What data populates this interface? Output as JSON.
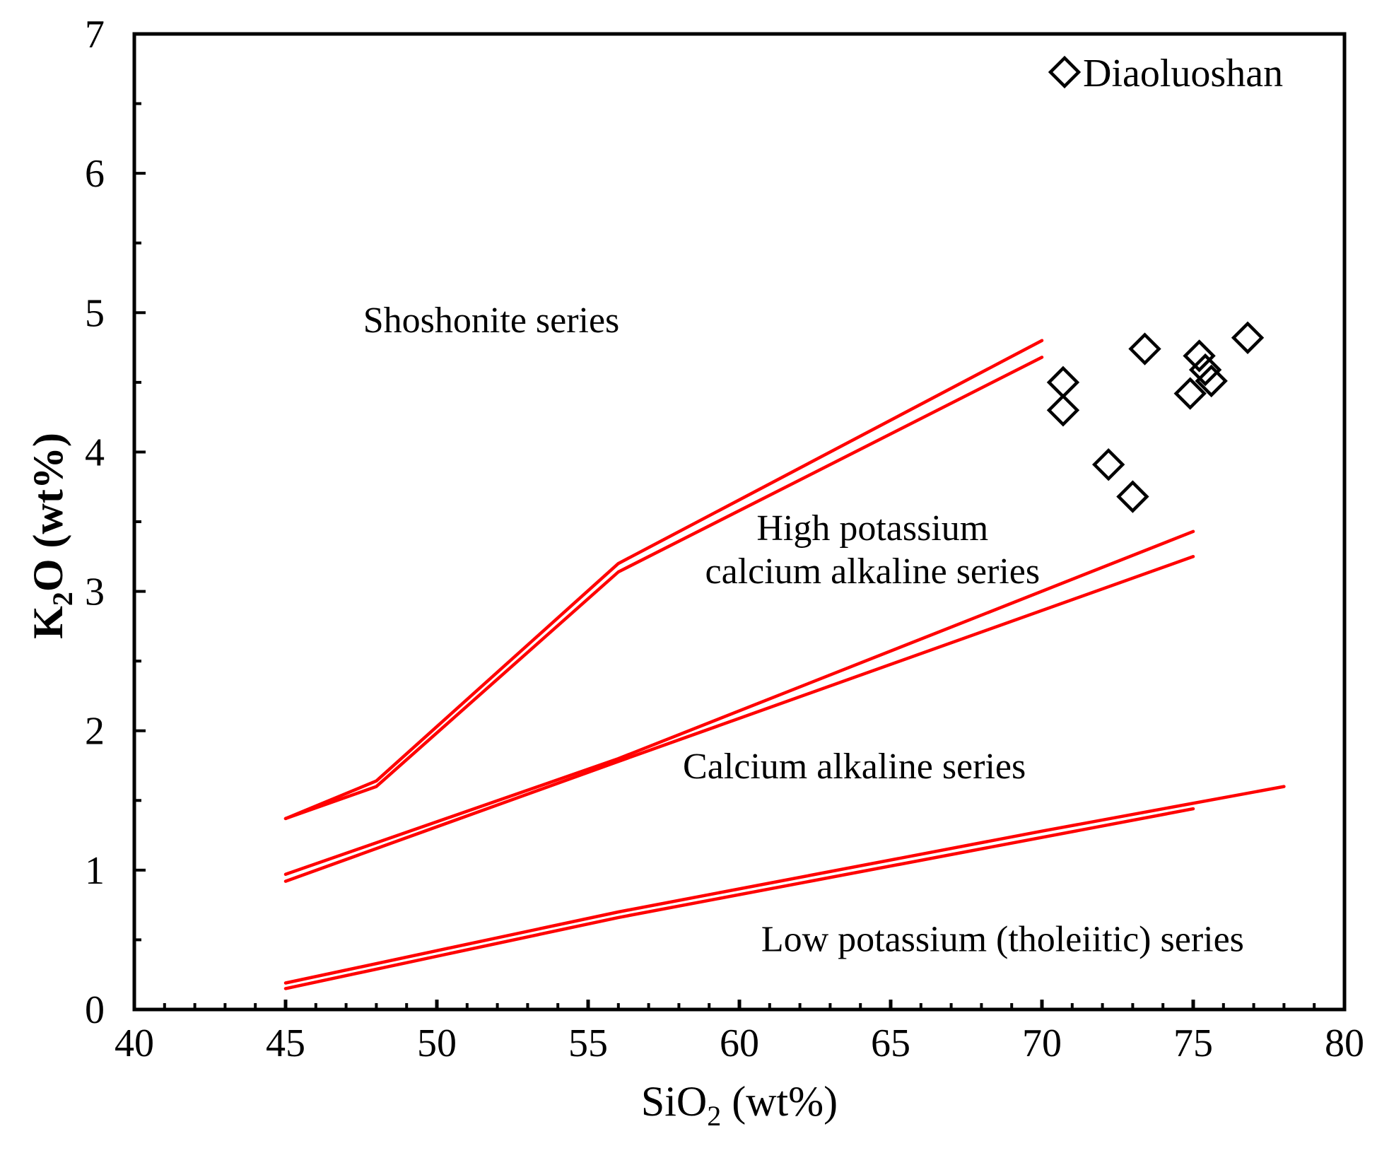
{
  "chart_data": {
    "type": "scatter",
    "xlabel": {
      "main": "SiO",
      "sub": "2",
      "rest": " (wt%)"
    },
    "ylabel": {
      "main": "K",
      "sub": "2",
      "rest": "O (wt%)"
    },
    "xlim": [
      40,
      80
    ],
    "ylim": [
      0,
      7
    ],
    "x_ticks": [
      "40",
      "45",
      "50",
      "55",
      "60",
      "65",
      "70",
      "75",
      "80"
    ],
    "y_ticks": [
      "0",
      "1",
      "2",
      "3",
      "4",
      "5",
      "6",
      "7"
    ],
    "legend": {
      "label": "Diaoluoshan",
      "marker": "open-diamond",
      "position": "top-right"
    },
    "series": [
      {
        "name": "Diaoluoshan",
        "marker": "diamond",
        "points": [
          {
            "x": 70.7,
            "y": 4.5
          },
          {
            "x": 70.7,
            "y": 4.3
          },
          {
            "x": 72.2,
            "y": 3.91
          },
          {
            "x": 73.0,
            "y": 3.68
          },
          {
            "x": 73.4,
            "y": 4.74
          },
          {
            "x": 74.9,
            "y": 4.42
          },
          {
            "x": 75.2,
            "y": 4.69
          },
          {
            "x": 75.4,
            "y": 4.59
          },
          {
            "x": 75.6,
            "y": 4.51
          },
          {
            "x": 76.8,
            "y": 4.82
          }
        ]
      }
    ],
    "boundary_lines": [
      {
        "color": "#ff0000",
        "points": [
          [
            45,
            1.37
          ],
          [
            48,
            1.64
          ],
          [
            56,
            3.2
          ],
          [
            70,
            4.8
          ]
        ]
      },
      {
        "color": "#ff0000",
        "points": [
          [
            45,
            1.37
          ],
          [
            48,
            1.6
          ],
          [
            56,
            3.14
          ],
          [
            70,
            4.68
          ]
        ]
      },
      {
        "color": "#ff0000",
        "points": [
          [
            45,
            0.97
          ],
          [
            56,
            1.8
          ],
          [
            75,
            3.43
          ]
        ]
      },
      {
        "color": "#ff0000",
        "points": [
          [
            45,
            0.92
          ],
          [
            56,
            1.78
          ],
          [
            75,
            3.25
          ]
        ]
      },
      {
        "color": "#ff0000",
        "points": [
          [
            45,
            0.19
          ],
          [
            56,
            0.7
          ],
          [
            70,
            1.28
          ],
          [
            78,
            1.6
          ]
        ]
      },
      {
        "color": "#ff0000",
        "points": [
          [
            45,
            0.15
          ],
          [
            56,
            0.66
          ],
          [
            75,
            1.44
          ]
        ]
      }
    ],
    "annotations": [
      {
        "text": "Shoshonite series",
        "x": 51.8,
        "y": 4.95
      },
      {
        "text": "High potassium",
        "x": 64.4,
        "y": 3.46
      },
      {
        "text": "calcium alkaline series",
        "x": 64.4,
        "y": 3.15
      },
      {
        "text": "Calcium alkaline series",
        "x": 63.8,
        "y": 1.75
      },
      {
        "text": "Low potassium (tholeiitic) series",
        "x": 68.7,
        "y": 0.51
      }
    ],
    "grid": false
  }
}
